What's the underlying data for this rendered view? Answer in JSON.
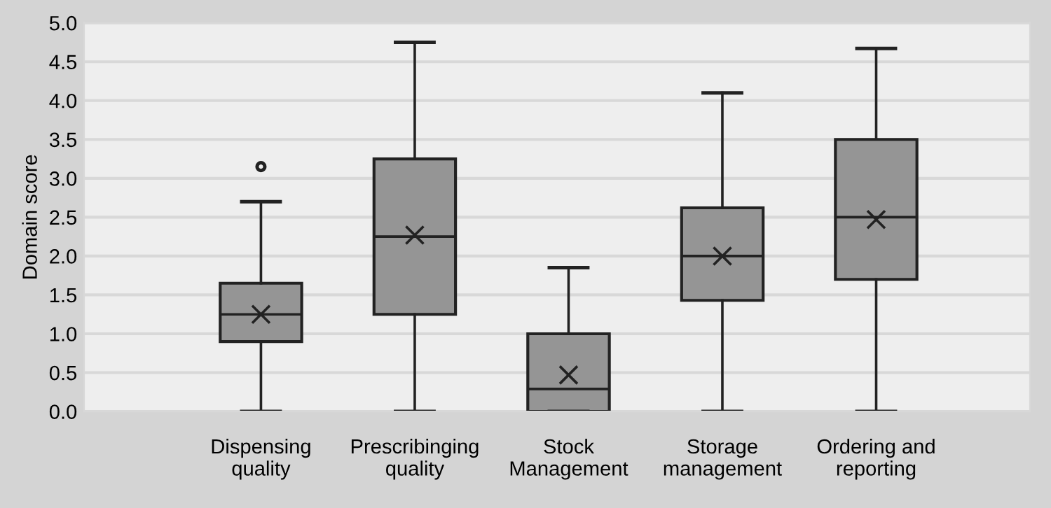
{
  "chart_data": {
    "type": "box",
    "ylabel": "Domain score",
    "categories": [
      "Dispensing\nquality",
      "Prescribinging\nquality",
      "Stock\nManagement",
      "Storage\nmanagement",
      "Ordering and\nreporting"
    ],
    "boxes": [
      {
        "low": 0,
        "q1": 0.9,
        "median": 1.25,
        "q3": 1.65,
        "high": 2.7,
        "mean": 1.25,
        "outliers": [
          3.15
        ]
      },
      {
        "low": 0,
        "q1": 1.25,
        "median": 2.25,
        "q3": 3.25,
        "high": 4.75,
        "mean": 2.27
      },
      {
        "low": 0,
        "q1": 0,
        "median": 0.29,
        "q3": 1.0,
        "high": 1.85,
        "mean": 0.47
      },
      {
        "low": 0,
        "q1": 1.43,
        "median": 2.0,
        "q3": 2.62,
        "high": 4.1,
        "mean": 2.0
      },
      {
        "low": 0,
        "q1": 1.7,
        "median": 2.5,
        "q3": 3.5,
        "high": 4.67,
        "mean": 2.47
      }
    ],
    "color": "#959595",
    "ylim": [
      0,
      5
    ],
    "yticks": [
      {
        "value": 0,
        "label": "0.0"
      },
      {
        "value": 0.5,
        "label": "0.5"
      },
      {
        "value": 1,
        "label": "1.0"
      },
      {
        "value": 1.5,
        "label": "1.5"
      },
      {
        "value": 2,
        "label": "2.0"
      },
      {
        "value": 2.5,
        "label": "2.5"
      },
      {
        "value": 3,
        "label": "3.0"
      },
      {
        "value": 3.5,
        "label": "3.5"
      },
      {
        "value": 4,
        "label": "4.0"
      },
      {
        "value": 4.5,
        "label": "4.5"
      },
      {
        "value": 5,
        "label": "5.0"
      }
    ],
    "grid": "y",
    "marker": "cross"
  }
}
